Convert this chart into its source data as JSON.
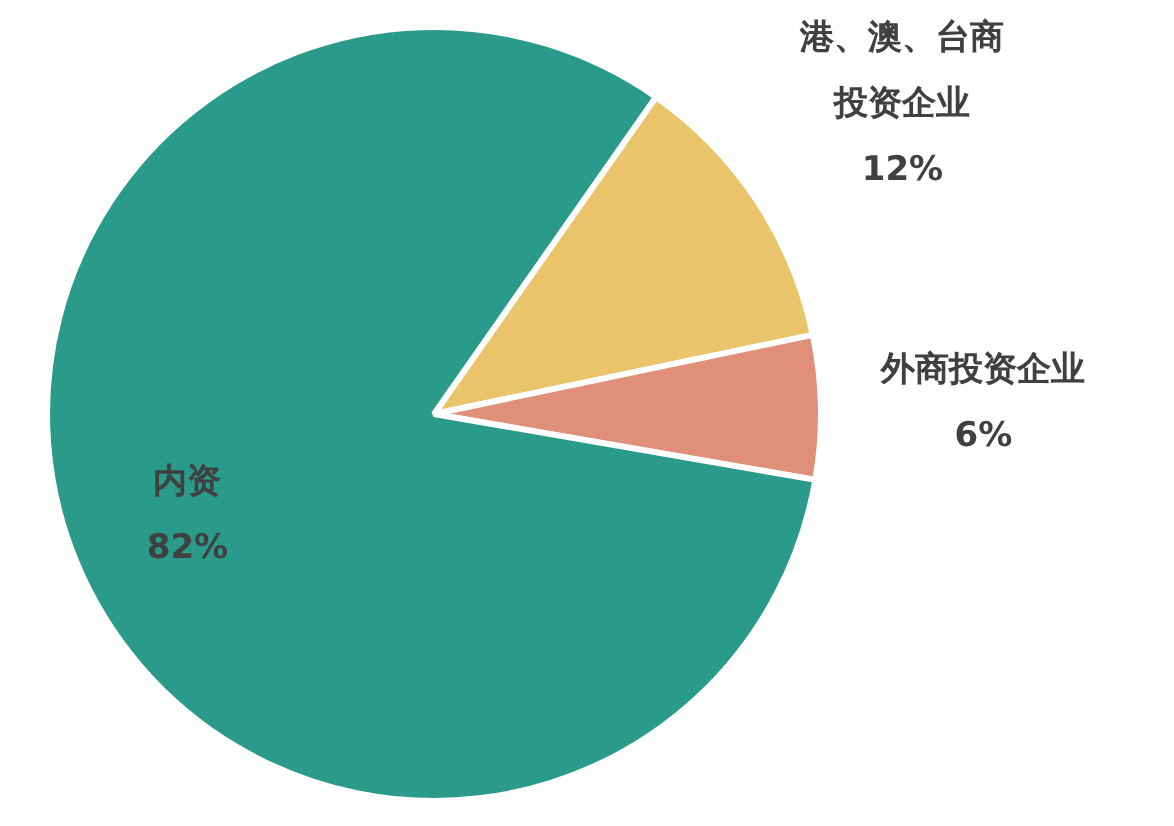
{
  "chart_data": {
    "type": "pie",
    "categories": [
      "港、澳、台商投资企业",
      "外商投资企业",
      "内资"
    ],
    "values": [
      12,
      6,
      82
    ],
    "colors": [
      "#e9c46a",
      "#e0907a",
      "#2a9b8a"
    ],
    "value_labels": [
      "12%",
      "6%",
      "82%"
    ],
    "legend": false
  }
}
